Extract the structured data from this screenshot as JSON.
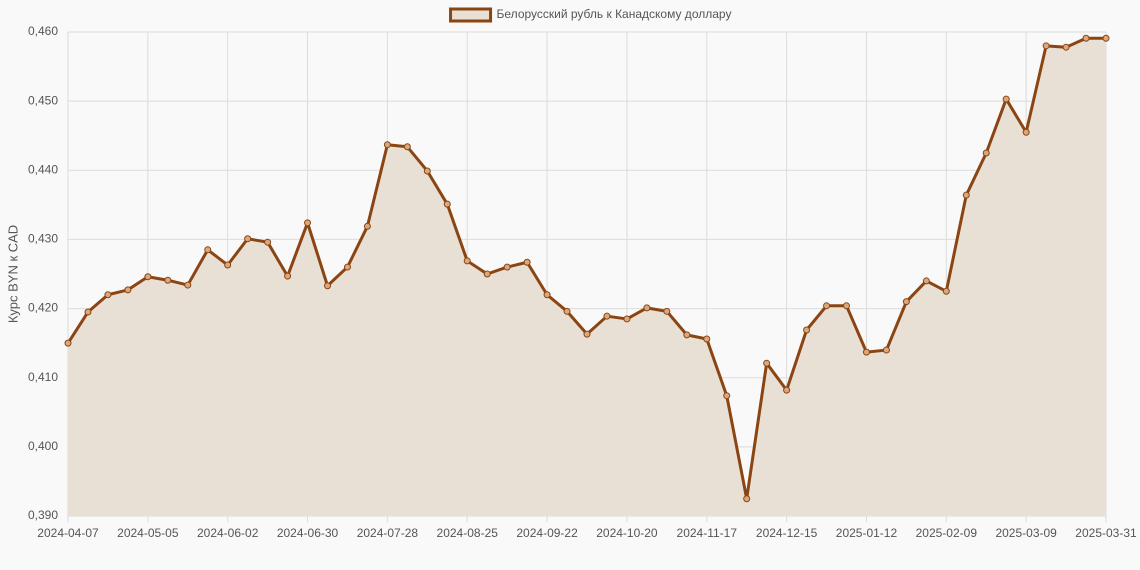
{
  "chart_data": {
    "type": "line",
    "legend": "top",
    "y_label": "Курс BYN к CAD",
    "categories": [
      "2024-04-07",
      null,
      null,
      null,
      "2024-05-05",
      null,
      null,
      null,
      "2024-06-02",
      null,
      null,
      null,
      "2024-06-30",
      null,
      null,
      null,
      "2024-07-28",
      null,
      null,
      null,
      "2024-08-25",
      null,
      null,
      null,
      "2024-09-22",
      null,
      null,
      null,
      "2024-10-20",
      null,
      null,
      null,
      "2024-11-17",
      null,
      null,
      null,
      "2024-12-15",
      null,
      null,
      null,
      "2025-01-12",
      null,
      null,
      null,
      "2025-02-09",
      null,
      null,
      null,
      "2025-03-09",
      null,
      null,
      null,
      "2025-03-31"
    ],
    "series": [
      {
        "name": "Белорусский рубль к Канадскому доллару",
        "color": "#8b4513",
        "fill": "#e8e0d5",
        "values": [
          0.415,
          0.4195,
          0.422,
          0.4227,
          0.4246,
          0.4241,
          0.4234,
          0.4285,
          0.4263,
          0.4301,
          0.4296,
          0.4247,
          0.4324,
          0.4233,
          0.426,
          0.4319,
          0.4437,
          0.4434,
          0.4399,
          0.4351,
          0.4269,
          0.425,
          0.426,
          0.4267,
          0.422,
          0.4196,
          0.4163,
          0.4189,
          0.4185,
          0.4201,
          0.4196,
          0.4162,
          0.4156,
          0.4074,
          0.3925,
          0.4121,
          0.4082,
          0.4169,
          0.4204,
          0.4204,
          0.4137,
          0.414,
          0.421,
          0.424,
          0.4225,
          0.4364,
          0.4425,
          0.4503,
          0.4455,
          0.458,
          0.4578,
          0.4591,
          0.4591
        ]
      }
    ],
    "ylim": [
      0.39,
      0.46
    ],
    "yticks": [
      {
        "value": 0.39,
        "label": "0,390"
      },
      {
        "value": 0.4,
        "label": "0,400"
      },
      {
        "value": 0.41,
        "label": "0,410"
      },
      {
        "value": 0.42,
        "label": "0,420"
      },
      {
        "value": 0.43,
        "label": "0,430"
      },
      {
        "value": 0.44,
        "label": "0,440"
      },
      {
        "value": 0.45,
        "label": "0,450"
      },
      {
        "value": 0.46,
        "label": "0,460"
      }
    ],
    "grid": true
  }
}
